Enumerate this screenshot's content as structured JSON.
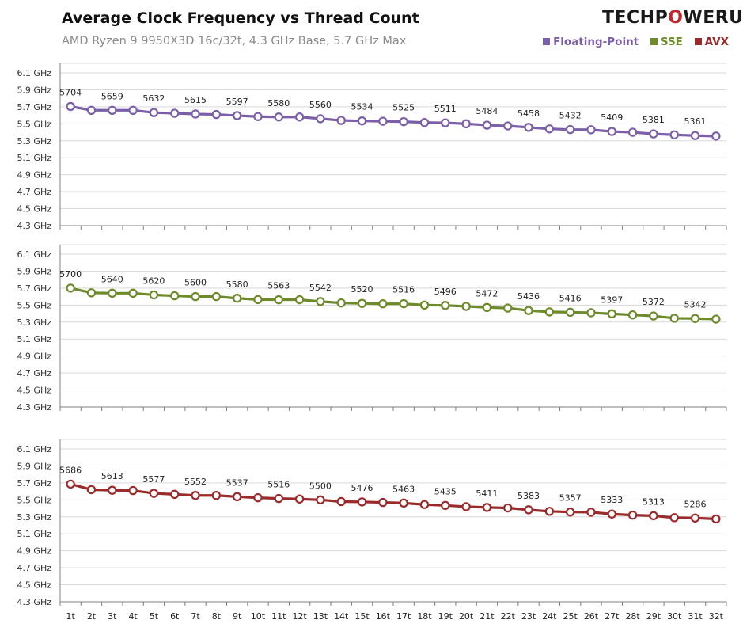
{
  "title": "Average Clock Frequency vs Thread Count",
  "subtitle": "AMD Ryzen 9 9950X3D 16c/32t, 4.3 GHz Base, 5.7 GHz Max",
  "logo": {
    "pre": "TECHP",
    "mark": "O",
    "post": "WERUP"
  },
  "legend": [
    {
      "label": "Floating-Point",
      "color": "#7b5fa8"
    },
    {
      "label": "SSE",
      "color": "#6d8b2a"
    },
    {
      "label": "AVX",
      "color": "#9b2b2b"
    }
  ],
  "chart_data": [
    {
      "type": "line",
      "series": [
        {
          "name": "Floating-Point",
          "color": "#7b5fa8",
          "values": [
            5704,
            5659,
            5659,
            5659,
            5632,
            5624,
            5615,
            5610,
            5597,
            5585,
            5580,
            5580,
            5560,
            5540,
            5534,
            5530,
            5525,
            5515,
            5511,
            5500,
            5484,
            5475,
            5458,
            5440,
            5432,
            5430,
            5409,
            5400,
            5381,
            5370,
            5361,
            5355
          ],
          "labels": [
            5704,
            null,
            5659,
            null,
            5632,
            null,
            5615,
            null,
            5597,
            null,
            5580,
            null,
            5560,
            null,
            5534,
            null,
            5525,
            null,
            5511,
            null,
            5484,
            null,
            5458,
            null,
            5432,
            null,
            5409,
            null,
            5381,
            null,
            5361,
            null
          ]
        }
      ],
      "categories": [
        "1t",
        "2t",
        "3t",
        "4t",
        "5t",
        "6t",
        "7t",
        "8t",
        "9t",
        "10t",
        "11t",
        "12t",
        "13t",
        "14t",
        "15t",
        "16t",
        "17t",
        "18t",
        "19t",
        "20t",
        "21t",
        "22t",
        "23t",
        "24t",
        "25t",
        "26t",
        "27t",
        "28t",
        "29t",
        "30t",
        "31t",
        "32t"
      ],
      "yticks": [
        "4.3 GHz",
        "4.5 GHz",
        "4.7 GHz",
        "4.9 GHz",
        "5.1 GHz",
        "5.3 GHz",
        "5.5 GHz",
        "5.7 GHz",
        "5.9 GHz",
        "6.1 GHz"
      ],
      "ylim": [
        4300,
        6200
      ]
    },
    {
      "type": "line",
      "series": [
        {
          "name": "SSE",
          "color": "#6d8b2a",
          "values": [
            5700,
            5645,
            5640,
            5640,
            5620,
            5610,
            5600,
            5600,
            5580,
            5565,
            5563,
            5563,
            5542,
            5525,
            5520,
            5515,
            5516,
            5500,
            5496,
            5485,
            5472,
            5465,
            5436,
            5420,
            5416,
            5410,
            5397,
            5385,
            5372,
            5345,
            5342,
            5335
          ],
          "labels": [
            5700,
            null,
            5640,
            null,
            5620,
            null,
            5600,
            null,
            5580,
            null,
            5563,
            null,
            5542,
            null,
            5520,
            null,
            5516,
            null,
            5496,
            null,
            5472,
            null,
            5436,
            null,
            5416,
            null,
            5397,
            null,
            5372,
            null,
            5342,
            null
          ]
        }
      ],
      "categories": [
        "1t",
        "2t",
        "3t",
        "4t",
        "5t",
        "6t",
        "7t",
        "8t",
        "9t",
        "10t",
        "11t",
        "12t",
        "13t",
        "14t",
        "15t",
        "16t",
        "17t",
        "18t",
        "19t",
        "20t",
        "21t",
        "22t",
        "23t",
        "24t",
        "25t",
        "26t",
        "27t",
        "28t",
        "29t",
        "30t",
        "31t",
        "32t"
      ],
      "yticks": [
        "4.3 GHz",
        "4.5 GHz",
        "4.7 GHz",
        "4.9 GHz",
        "5.1 GHz",
        "5.3 GHz",
        "5.5 GHz",
        "5.7 GHz",
        "5.9 GHz",
        "6.1 GHz"
      ],
      "ylim": [
        4300,
        6200
      ]
    },
    {
      "type": "line",
      "series": [
        {
          "name": "AVX",
          "color": "#9b2b2b",
          "values": [
            5686,
            5620,
            5613,
            5610,
            5577,
            5565,
            5552,
            5552,
            5537,
            5525,
            5516,
            5510,
            5500,
            5480,
            5476,
            5470,
            5463,
            5445,
            5435,
            5420,
            5411,
            5405,
            5383,
            5365,
            5357,
            5355,
            5333,
            5320,
            5313,
            5290,
            5286,
            5275
          ],
          "labels": [
            5686,
            null,
            5613,
            null,
            5577,
            null,
            5552,
            null,
            5537,
            null,
            5516,
            null,
            5500,
            null,
            5476,
            null,
            5463,
            null,
            5435,
            null,
            5411,
            null,
            5383,
            null,
            5357,
            null,
            5333,
            null,
            5313,
            null,
            5286,
            null
          ]
        }
      ],
      "categories": [
        "1t",
        "2t",
        "3t",
        "4t",
        "5t",
        "6t",
        "7t",
        "8t",
        "9t",
        "10t",
        "11t",
        "12t",
        "13t",
        "14t",
        "15t",
        "16t",
        "17t",
        "18t",
        "19t",
        "20t",
        "21t",
        "22t",
        "23t",
        "24t",
        "25t",
        "26t",
        "27t",
        "28t",
        "29t",
        "30t",
        "31t",
        "32t"
      ],
      "yticks": [
        "4.3 GHz",
        "4.5 GHz",
        "4.7 GHz",
        "4.9 GHz",
        "5.1 GHz",
        "5.3 GHz",
        "5.5 GHz",
        "5.7 GHz",
        "5.9 GHz",
        "6.1 GHz"
      ],
      "ylim": [
        4300,
        6200
      ]
    }
  ]
}
